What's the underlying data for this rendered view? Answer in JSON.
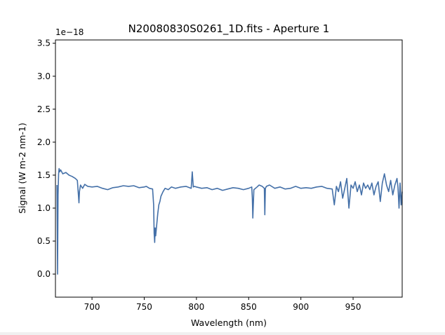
{
  "chart_data": {
    "type": "line",
    "title": "N20080830S0261_1D.fits - Aperture 1",
    "xlabel": "Wavelength (nm)",
    "ylabel": "Signal (W m-2 nm-1)",
    "y_offset_label": "1e−18",
    "xlim": [
      665,
      997
    ],
    "ylim": [
      -0.35,
      3.55
    ],
    "x_ticks": [
      700,
      750,
      800,
      850,
      900,
      950
    ],
    "x_tick_labels": [
      "700",
      "750",
      "800",
      "850",
      "900",
      "950"
    ],
    "y_ticks": [
      0.0,
      0.5,
      1.0,
      1.5,
      2.0,
      2.5,
      3.0,
      3.5
    ],
    "y_tick_labels": [
      "0.0",
      "0.5",
      "1.0",
      "1.5",
      "2.0",
      "2.5",
      "3.0",
      "3.5"
    ],
    "grid": false,
    "line_color": "#4470a8",
    "series": [
      {
        "x": [
          666.5,
          667,
          667.5,
          668,
          668.5,
          669,
          670,
          672,
          675,
          678,
          681,
          684,
          686,
          687,
          687.5,
          688,
          689,
          691,
          693,
          696,
          700,
          705,
          710,
          715,
          720,
          725,
          730,
          735,
          740,
          745,
          750,
          752,
          755,
          758,
          759,
          759.5,
          760,
          760.5,
          761,
          762,
          763,
          764,
          765,
          766,
          768,
          770,
          773,
          776,
          780,
          785,
          790,
          795,
          796,
          797,
          798,
          800,
          805,
          810,
          815,
          820,
          825,
          830,
          835,
          840,
          845,
          850,
          853,
          853.5,
          854,
          855,
          858,
          860,
          863,
          865,
          865.5,
          866,
          867,
          870,
          875,
          880,
          885,
          890,
          895,
          900,
          905,
          910,
          915,
          920,
          925,
          930,
          932,
          934,
          936,
          938,
          940,
          942,
          944,
          946,
          948,
          950,
          952,
          954,
          956,
          958,
          960,
          962,
          964,
          966,
          968,
          970,
          972,
          974,
          976,
          978,
          980,
          982,
          984,
          986,
          988,
          990,
          992,
          993,
          994,
          995,
          996,
          997
        ],
        "y": [
          1.35,
          0.0,
          1.2,
          1.52,
          1.6,
          1.55,
          1.58,
          1.52,
          1.54,
          1.5,
          1.48,
          1.45,
          1.42,
          1.2,
          1.08,
          1.25,
          1.35,
          1.3,
          1.36,
          1.33,
          1.32,
          1.33,
          1.3,
          1.28,
          1.31,
          1.32,
          1.34,
          1.33,
          1.34,
          1.31,
          1.32,
          1.33,
          1.3,
          1.29,
          1.05,
          0.62,
          0.48,
          0.7,
          0.58,
          0.75,
          0.92,
          1.05,
          1.1,
          1.18,
          1.25,
          1.3,
          1.28,
          1.32,
          1.3,
          1.32,
          1.33,
          1.3,
          1.55,
          1.32,
          1.33,
          1.32,
          1.3,
          1.31,
          1.28,
          1.3,
          1.27,
          1.29,
          1.31,
          1.3,
          1.28,
          1.3,
          1.32,
          1.15,
          0.85,
          1.28,
          1.32,
          1.35,
          1.33,
          1.3,
          0.9,
          1.3,
          1.33,
          1.35,
          1.3,
          1.32,
          1.29,
          1.3,
          1.33,
          1.3,
          1.31,
          1.3,
          1.32,
          1.33,
          1.3,
          1.29,
          1.05,
          1.33,
          1.25,
          1.4,
          1.15,
          1.3,
          1.45,
          1.0,
          1.35,
          1.3,
          1.4,
          1.25,
          1.35,
          1.2,
          1.38,
          1.3,
          1.35,
          1.28,
          1.38,
          1.2,
          1.33,
          1.4,
          1.1,
          1.38,
          1.52,
          1.35,
          1.25,
          1.42,
          1.2,
          1.35,
          1.45,
          1.32,
          1.0,
          1.38,
          1.05,
          1.25
        ]
      }
    ]
  }
}
